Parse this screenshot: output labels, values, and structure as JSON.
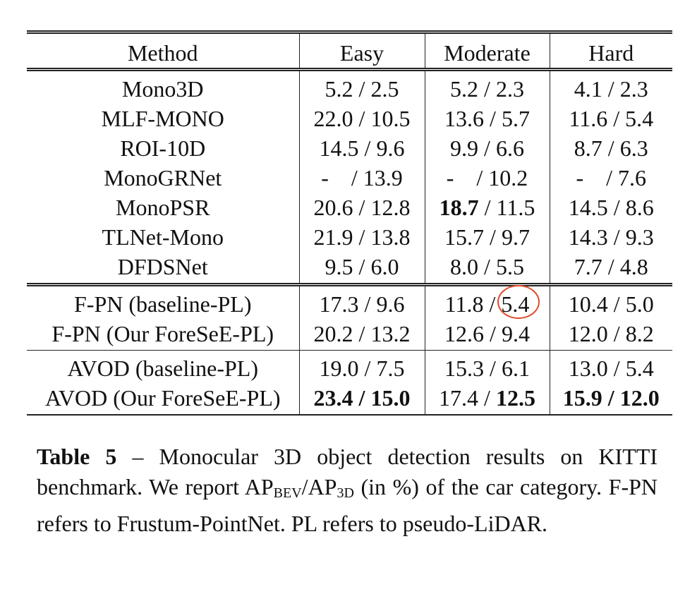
{
  "table": {
    "headers": [
      "Method",
      "Easy",
      "Moderate",
      "Hard"
    ],
    "groups": [
      {
        "rows": [
          {
            "method": "Mono3D",
            "easy": [
              {
                "t": "5.2 / 2.5"
              }
            ],
            "moderate": [
              {
                "t": "5.2 / 2.3"
              }
            ],
            "hard": [
              {
                "t": "4.1 / 2.3"
              }
            ]
          },
          {
            "method": "MLF-MONO",
            "easy": [
              {
                "t": "22.0 / 10.5"
              }
            ],
            "moderate": [
              {
                "t": "13.6 / 5.7"
              }
            ],
            "hard": [
              {
                "t": "11.6 / 5.4"
              }
            ]
          },
          {
            "method": "ROI-10D",
            "easy": [
              {
                "t": "14.5 / 9.6"
              }
            ],
            "moderate": [
              {
                "t": "9.9 / 6.6"
              }
            ],
            "hard": [
              {
                "t": "8.7 / 6.3"
              }
            ]
          },
          {
            "method": "MonoGRNet",
            "easy": [
              {
                "t": "-    / 13.9"
              }
            ],
            "moderate": [
              {
                "t": "-    / 10.2"
              }
            ],
            "hard": [
              {
                "t": "-    / 7.6"
              }
            ]
          },
          {
            "method": "MonoPSR",
            "easy": [
              {
                "t": "20.6 / 12.8"
              }
            ],
            "moderate": [
              {
                "t": "18.7",
                "b": true
              },
              {
                "t": " / 11.5"
              }
            ],
            "hard": [
              {
                "t": "14.5 / 8.6"
              }
            ]
          },
          {
            "method": "TLNet-Mono",
            "easy": [
              {
                "t": "21.9 / 13.8"
              }
            ],
            "moderate": [
              {
                "t": "15.7 / 9.7"
              }
            ],
            "hard": [
              {
                "t": "14.3 / 9.3"
              }
            ]
          },
          {
            "method": "DFDSNet",
            "easy": [
              {
                "t": "9.5 / 6.0"
              }
            ],
            "moderate": [
              {
                "t": "8.0 / 5.5"
              }
            ],
            "hard": [
              {
                "t": "7.7 / 4.8"
              }
            ]
          }
        ]
      },
      {
        "rows": [
          {
            "method": "F-PN (baseline-PL)",
            "easy": [
              {
                "t": "17.3 / 9.6"
              }
            ],
            "moderate": [
              {
                "t": "11.8 / 5.4"
              }
            ],
            "hard": [
              {
                "t": "10.4 / 5.0"
              }
            ]
          },
          {
            "method": "F-PN (Our ForeSeE-PL)",
            "easy": [
              {
                "t": "20.2 / 13.2"
              }
            ],
            "moderate": [
              {
                "t": "12.6 / 9.4"
              }
            ],
            "hard": [
              {
                "t": "12.0 / 8.2"
              }
            ]
          }
        ]
      },
      {
        "rows": [
          {
            "method": "AVOD (baseline-PL)",
            "easy": [
              {
                "t": "19.0 / 7.5"
              }
            ],
            "moderate": [
              {
                "t": "15.3 / 6.1"
              }
            ],
            "hard": [
              {
                "t": "13.0 / 5.4"
              }
            ]
          },
          {
            "method": "AVOD (Our ForeSeE-PL)",
            "easy": [
              {
                "t": "23.4 / 15.0",
                "b": true
              }
            ],
            "moderate": [
              {
                "t": "17.4 / "
              },
              {
                "t": "12.5",
                "b": true
              }
            ],
            "hard": [
              {
                "t": "15.9 / 12.0",
                "b": true
              }
            ]
          }
        ]
      }
    ]
  },
  "caption": {
    "label": "Table 5",
    "dash": " – ",
    "text_before": "Monocular 3D object detection results on KITTI benchmark.  We report ",
    "ap": "AP",
    "sub_bev": "BEV",
    "slash": "/",
    "sub_3d": "3D",
    "text_after": " (in %) of the car category.  F-PN refers to Frustum-PointNet.  PL refers to pseudo-LiDAR."
  },
  "annotation": {
    "color": "#e04a2a",
    "marks": "Moderate 5.4 in F-PN (baseline-PL) row"
  }
}
